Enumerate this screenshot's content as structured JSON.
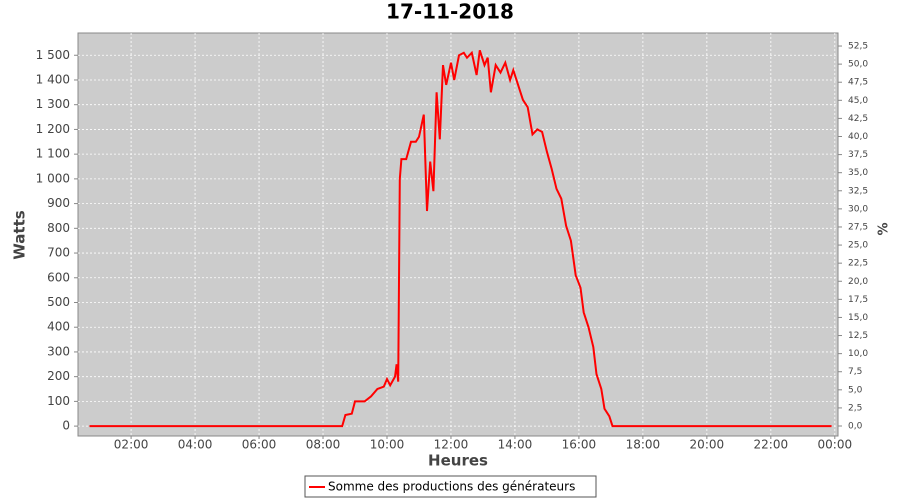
{
  "chart_data": {
    "type": "line",
    "title": "17-11-2018",
    "x_label": "Heures",
    "y_label": "Watts",
    "y2_label": "%",
    "x": [
      0.7,
      1.5,
      2.5,
      3.5,
      4.5,
      5.5,
      6.5,
      7.5,
      8.0,
      8.6,
      8.7,
      8.9,
      9.0,
      9.3,
      9.5,
      9.7,
      9.9,
      10.0,
      10.1,
      10.25,
      10.3,
      10.35,
      10.4,
      10.45,
      10.6,
      10.75,
      10.9,
      11.0,
      11.15,
      11.25,
      11.35,
      11.45,
      11.55,
      11.65,
      11.75,
      11.85,
      12.0,
      12.1,
      12.25,
      12.4,
      12.5,
      12.65,
      12.8,
      12.9,
      13.05,
      13.15,
      13.25,
      13.4,
      13.55,
      13.7,
      13.85,
      13.95,
      14.1,
      14.25,
      14.4,
      14.55,
      14.7,
      14.85,
      15.0,
      15.15,
      15.3,
      15.45,
      15.6,
      15.75,
      15.9,
      16.05,
      16.15,
      16.3,
      16.45,
      16.55,
      16.7,
      16.8,
      16.95,
      17.05,
      18.0,
      19.0,
      20.0,
      21.0,
      22.0,
      23.0,
      23.9
    ],
    "series": [
      {
        "name": "Somme des productions des  générateurs",
        "color": "#ff0000",
        "values": [
          0,
          0,
          0,
          0,
          0,
          0,
          0,
          0,
          0,
          0,
          45,
          50,
          100,
          100,
          120,
          150,
          160,
          190,
          165,
          200,
          250,
          180,
          1000,
          1080,
          1080,
          1150,
          1150,
          1170,
          1260,
          870,
          1070,
          950,
          1350,
          1160,
          1460,
          1380,
          1470,
          1400,
          1500,
          1510,
          1490,
          1510,
          1420,
          1520,
          1460,
          1490,
          1350,
          1460,
          1430,
          1470,
          1400,
          1440,
          1380,
          1320,
          1290,
          1180,
          1200,
          1190,
          1110,
          1040,
          960,
          920,
          810,
          750,
          610,
          560,
          460,
          400,
          320,
          210,
          150,
          70,
          40,
          0,
          0,
          0,
          0,
          0,
          0,
          0,
          0
        ]
      }
    ],
    "xlim": [
      0.34,
      24.1
    ],
    "xticks": [
      {
        "value": 2,
        "label": "02:00"
      },
      {
        "value": 4,
        "label": "04:00"
      },
      {
        "value": 6,
        "label": "06:00"
      },
      {
        "value": 8,
        "label": "08:00"
      },
      {
        "value": 10,
        "label": "10:00"
      },
      {
        "value": 12,
        "label": "12:00"
      },
      {
        "value": 14,
        "label": "14:00"
      },
      {
        "value": 16,
        "label": "16:00"
      },
      {
        "value": 18,
        "label": "18:00"
      },
      {
        "value": 20,
        "label": "20:00"
      },
      {
        "value": 22,
        "label": "22:00"
      },
      {
        "value": 24,
        "label": "00:00"
      }
    ],
    "ylim": [
      -40,
      1590
    ],
    "yticks": [
      0,
      100,
      200,
      300,
      400,
      500,
      600,
      700,
      800,
      900,
      {
        "value": 1000,
        "label": "1 000"
      },
      {
        "value": 1100,
        "label": "1 100"
      },
      {
        "value": 1200,
        "label": "1 200"
      },
      {
        "value": 1300,
        "label": "1 300"
      },
      {
        "value": 1400,
        "label": "1 400"
      },
      {
        "value": 1500,
        "label": "1 500"
      }
    ],
    "y2lim": [
      -1.38,
      54.3
    ],
    "y2ticks": [
      {
        "value": 0,
        "label": "0,0"
      },
      {
        "value": 2.5,
        "label": "2,5"
      },
      {
        "value": 5,
        "label": "5,0"
      },
      {
        "value": 7.5,
        "label": "7,5"
      },
      {
        "value": 10,
        "label": "10,0"
      },
      {
        "value": 12.5,
        "label": "12,5"
      },
      {
        "value": 15,
        "label": "15,0"
      },
      {
        "value": 17.5,
        "label": "17,5"
      },
      {
        "value": 20,
        "label": "20,0"
      },
      {
        "value": 22.5,
        "label": "22,5"
      },
      {
        "value": 25,
        "label": "25,0"
      },
      {
        "value": 27.5,
        "label": "27,5"
      },
      {
        "value": 30,
        "label": "30,0"
      },
      {
        "value": 32.5,
        "label": "32,5"
      },
      {
        "value": 35,
        "label": "35,0"
      },
      {
        "value": 37.5,
        "label": "37,5"
      },
      {
        "value": 40,
        "label": "40,0"
      },
      {
        "value": 42.5,
        "label": "42,5"
      },
      {
        "value": 45,
        "label": "45,0"
      },
      {
        "value": 47.5,
        "label": "47,5"
      },
      {
        "value": 50,
        "label": "50,0"
      },
      {
        "value": 52.5,
        "label": "52,5"
      }
    ],
    "grid": true
  }
}
